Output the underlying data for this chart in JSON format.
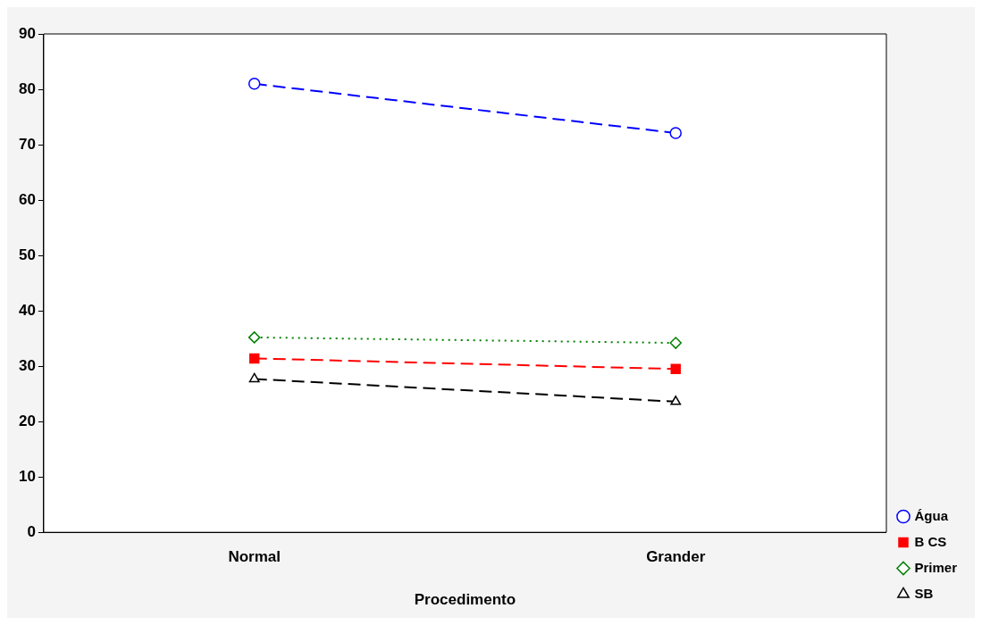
{
  "chart_data": {
    "type": "line",
    "xlabel": "Procedimento",
    "categories": [
      "Normal",
      "Grander"
    ],
    "series": [
      {
        "name": "Água",
        "color": "#0000ff",
        "values": [
          81.0,
          72.1
        ],
        "marker": "circle",
        "line_style": "dashed"
      },
      {
        "name": "B CS",
        "color": "#ff0000",
        "values": [
          31.4,
          29.5
        ],
        "marker": "square",
        "line_style": "dashed"
      },
      {
        "name": "Primer",
        "color": "#008000",
        "values": [
          35.2,
          34.2
        ],
        "marker": "diamond",
        "line_style": "dotted"
      },
      {
        "name": "SB",
        "color": "#000000",
        "values": [
          27.7,
          23.6
        ],
        "marker": "triangle",
        "line_style": "dashed"
      }
    ],
    "ylim": [
      0,
      90
    ],
    "yticks": [
      0,
      10,
      20,
      30,
      40,
      50,
      60,
      70,
      80,
      90
    ],
    "grid": false,
    "legend": "bottom right"
  }
}
